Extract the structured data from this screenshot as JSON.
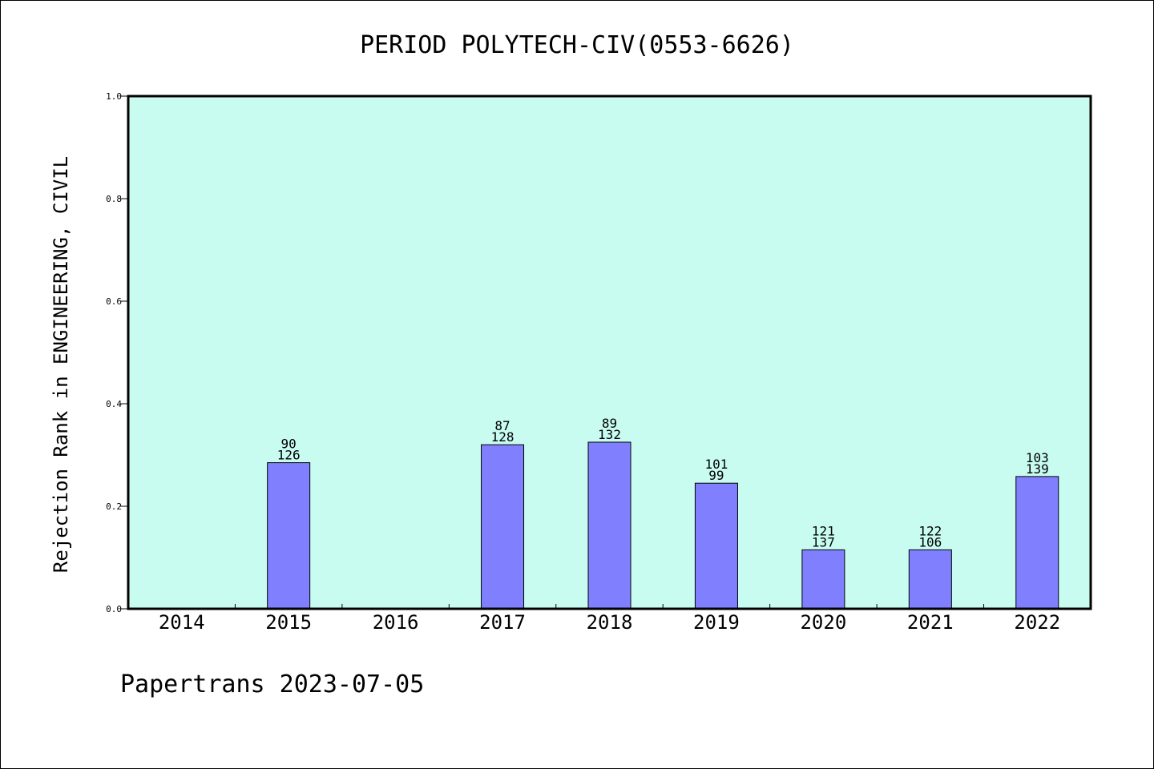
{
  "chart_data": {
    "type": "bar",
    "title": "PERIOD POLYTECH-CIV(0553-6626)",
    "xlabel": "",
    "ylabel": "Rejection Rank in ENGINEERING, CIVIL",
    "ylim": [
      0,
      1.0
    ],
    "yticks": [
      "0.0",
      "0.2",
      "0.4",
      "0.6",
      "0.8",
      "1.0"
    ],
    "yticks_values": [
      0,
      0.2,
      0.4,
      0.6,
      0.8,
      1.0
    ],
    "grid": false,
    "categories": [
      "2014",
      "2015",
      "2016",
      "2017",
      "2018",
      "2019",
      "2020",
      "2021",
      "2022"
    ],
    "values": [
      null,
      0.285,
      null,
      0.32,
      0.325,
      0.245,
      0.115,
      0.115,
      0.258
    ],
    "label_top": [
      "",
      "90",
      "",
      "87",
      "89",
      "101",
      "121",
      "122",
      "103"
    ],
    "label_bottom": [
      "",
      "126",
      "",
      "128",
      "132",
      "99",
      "137",
      "106",
      "139"
    ],
    "colors": {
      "plot_bg": "#c8fcf0",
      "bar": "#8080ff",
      "axis": "#000000"
    }
  },
  "footer": {
    "text": "Papertrans 2023-07-05"
  }
}
